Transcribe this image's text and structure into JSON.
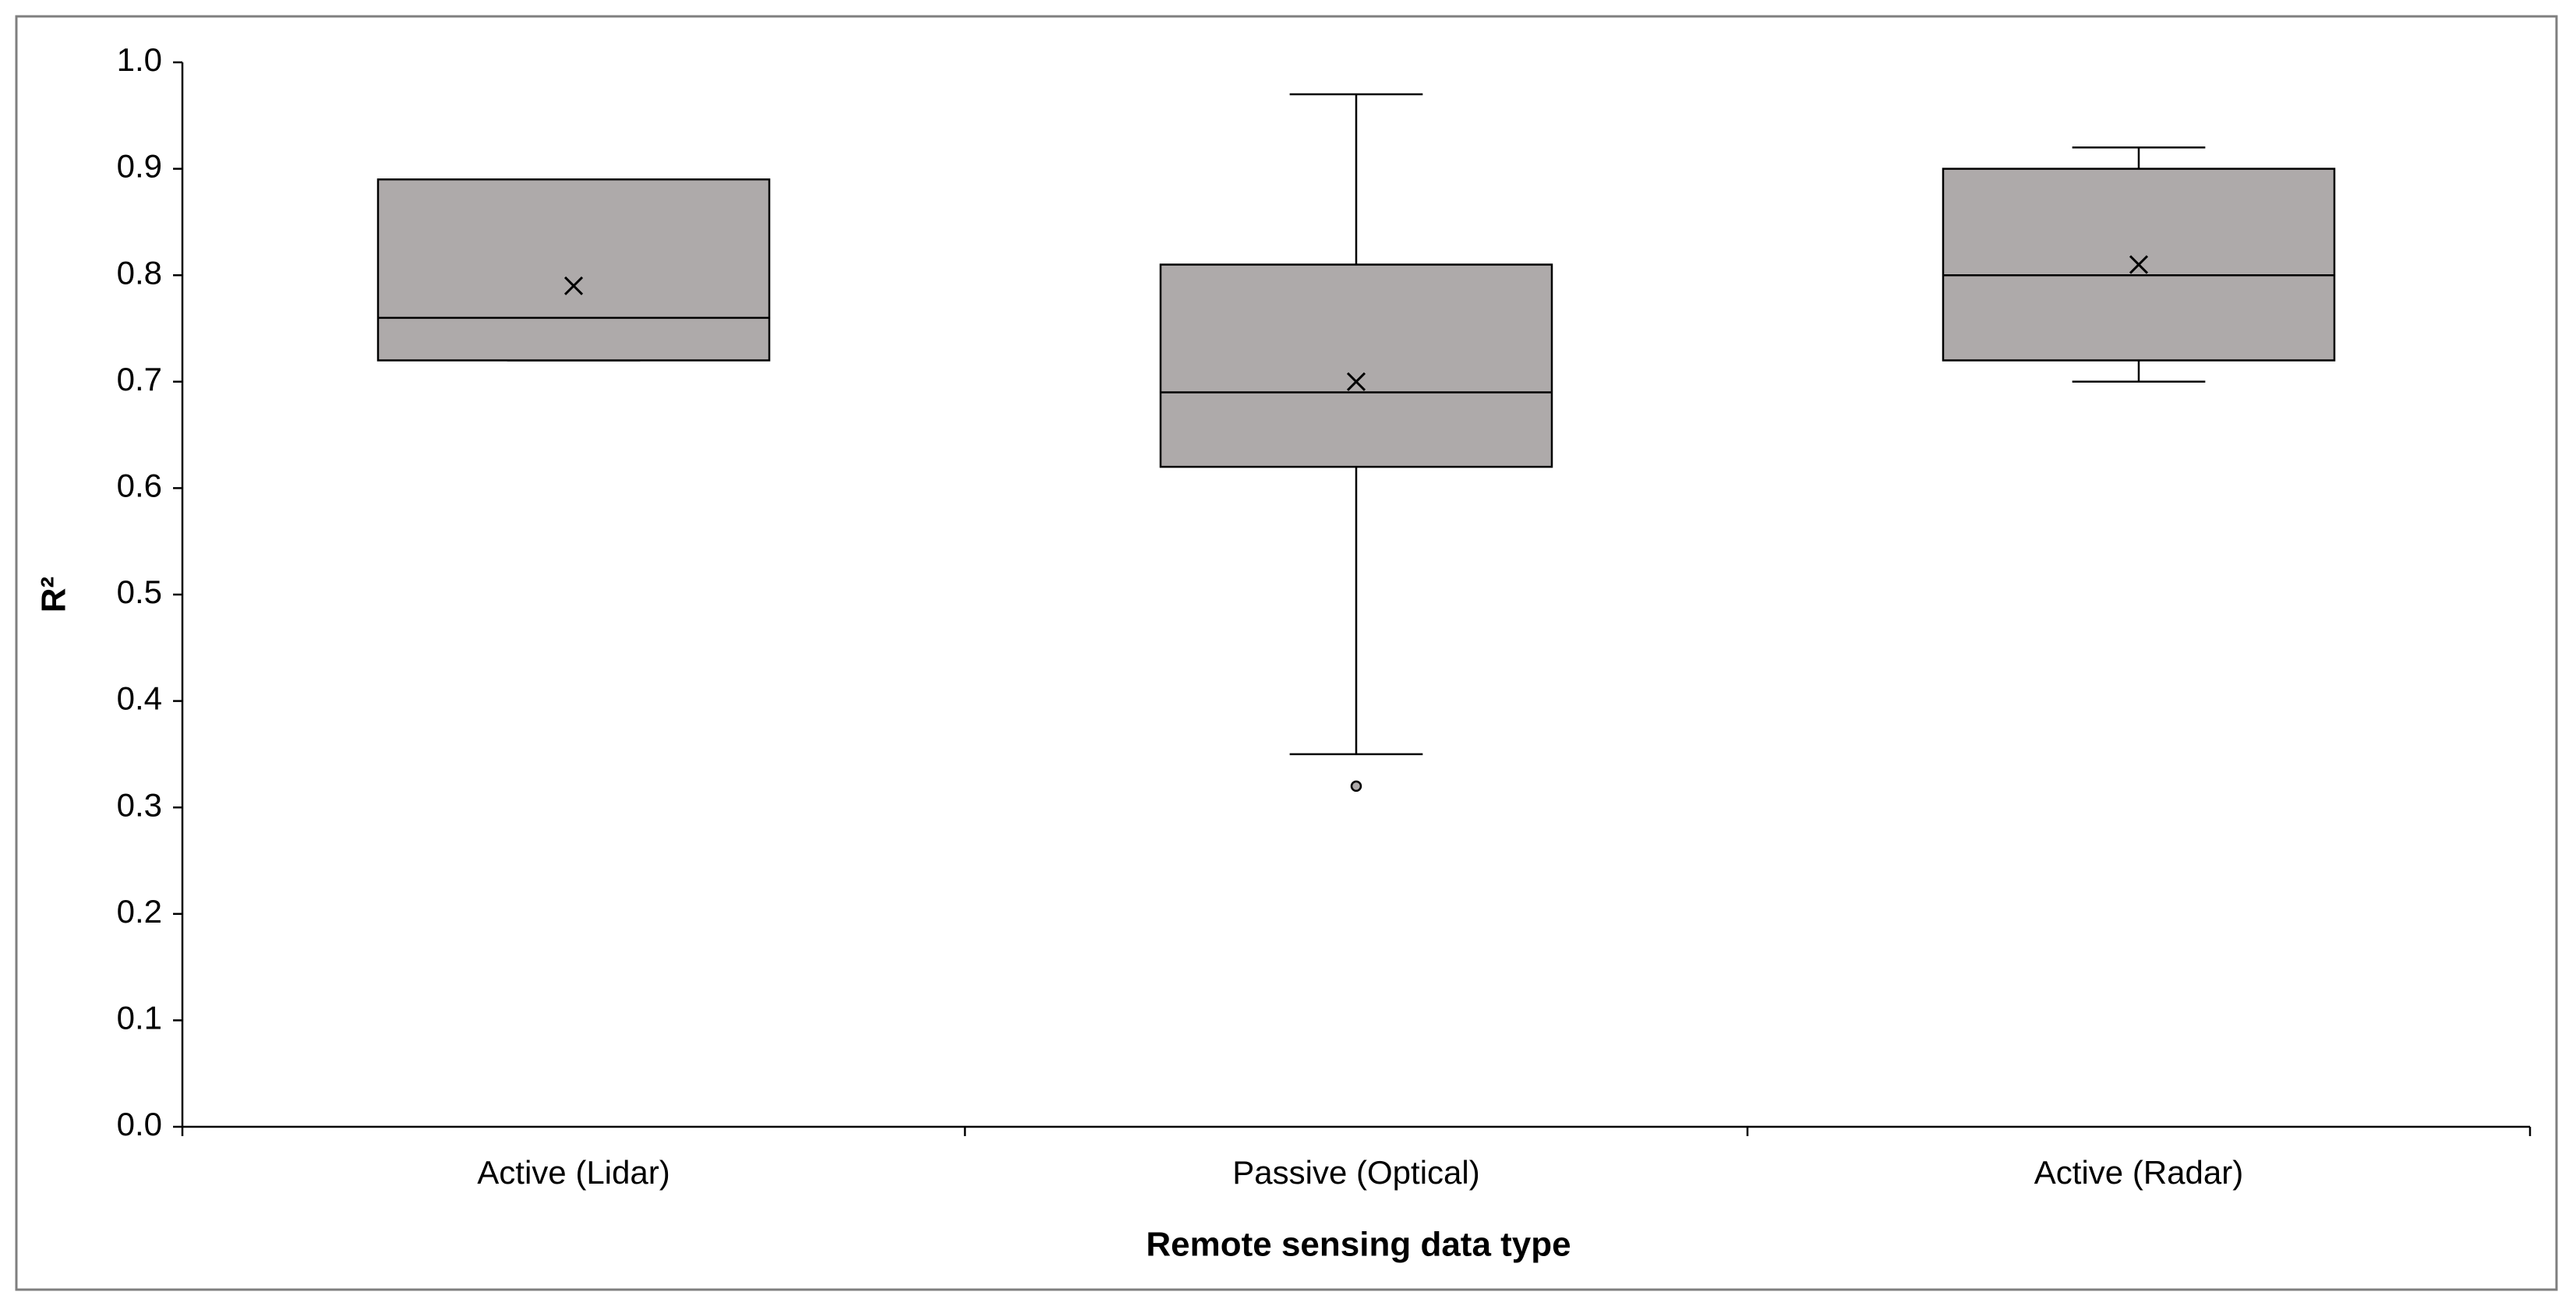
{
  "chart_data": {
    "type": "box",
    "categories": [
      "Active (Lidar)",
      "Passive (Optical)",
      "Active (Radar)"
    ],
    "boxes": [
      {
        "min": 0.72,
        "q1": 0.72,
        "median": 0.76,
        "q3": 0.89,
        "max": 0.89,
        "mean": 0.79,
        "outliers": []
      },
      {
        "min": 0.35,
        "q1": 0.62,
        "median": 0.69,
        "q3": 0.81,
        "max": 0.97,
        "mean": 0.7,
        "outliers": [
          0.32
        ]
      },
      {
        "min": 0.7,
        "q1": 0.72,
        "median": 0.8,
        "q3": 0.9,
        "max": 0.92,
        "mean": 0.81,
        "outliers": []
      }
    ],
    "color": "#aeaaaa",
    "ylim": [
      0,
      1
    ],
    "yticks": [
      {
        "value": 0,
        "label": "0.0"
      },
      0.1,
      0.2,
      0.3,
      0.4,
      0.5,
      0.6,
      0.7,
      0.8,
      0.9,
      {
        "value": 1,
        "label": "1.0"
      }
    ],
    "xlabel": "Remote sensing data type",
    "ylabel": "R²",
    "grid": false
  }
}
